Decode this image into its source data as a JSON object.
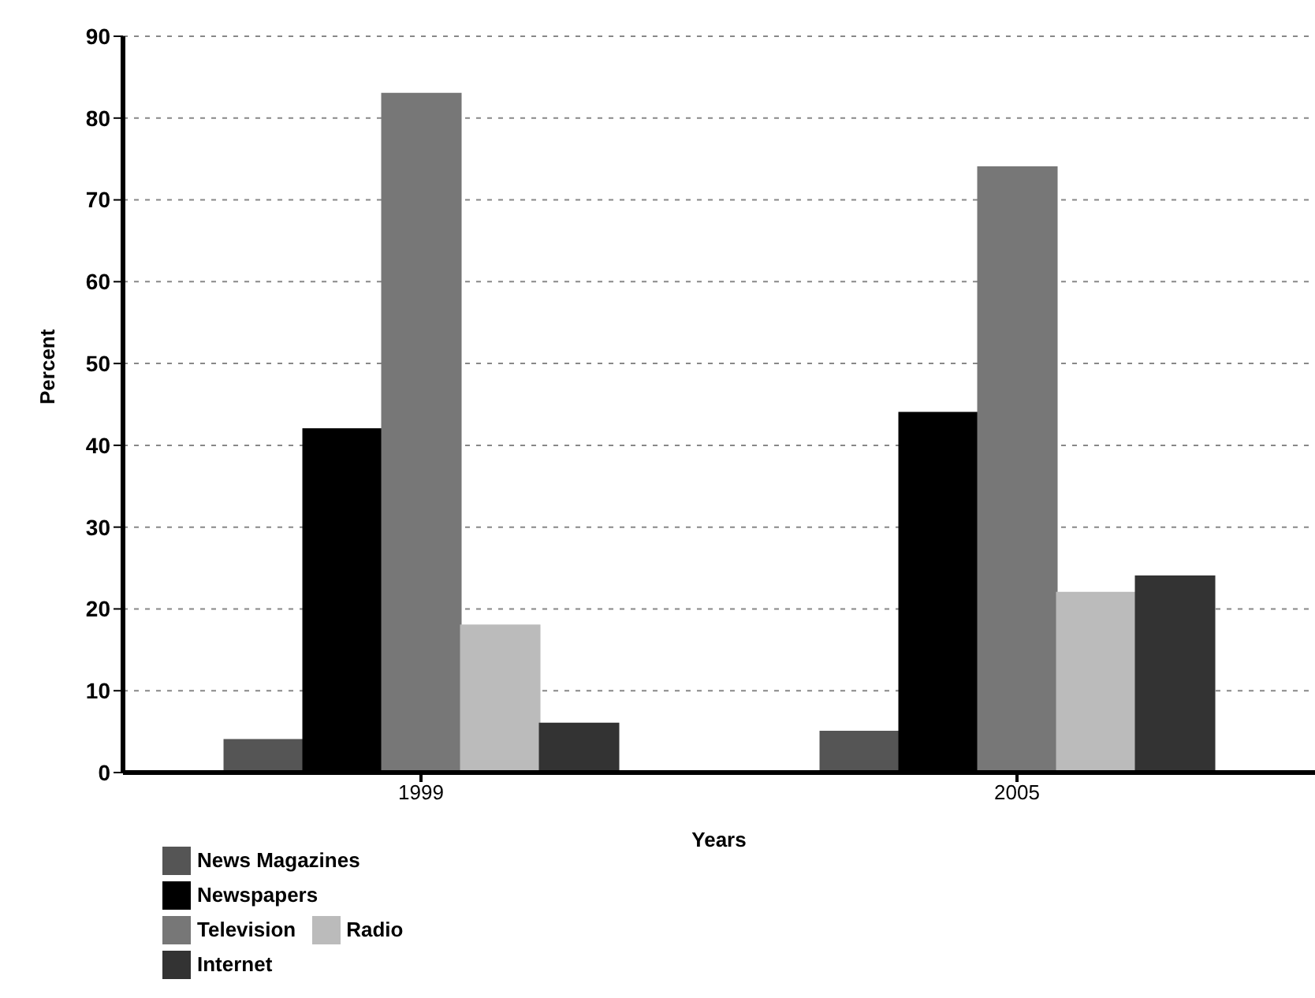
{
  "chart_data": {
    "type": "bar",
    "xlabel": "Years",
    "ylabel": "Percent",
    "categories": [
      "1999",
      "2005"
    ],
    "series": [
      {
        "name": "News Magazines",
        "color": "#555555",
        "values": [
          4,
          5
        ]
      },
      {
        "name": "Newspapers",
        "color": "#000000",
        "values": [
          42,
          44
        ]
      },
      {
        "name": "Television",
        "color": "#777777",
        "values": [
          83,
          74
        ]
      },
      {
        "name": "Radio",
        "color": "#bbbbbb",
        "values": [
          18,
          22
        ]
      },
      {
        "name": "Internet",
        "color": "#333333",
        "values": [
          6,
          24
        ]
      }
    ],
    "ylim": [
      0,
      90
    ],
    "yticks": [
      0,
      10,
      20,
      30,
      40,
      50,
      60,
      70,
      80,
      90
    ],
    "grid": "y",
    "legend": "bottom left"
  }
}
